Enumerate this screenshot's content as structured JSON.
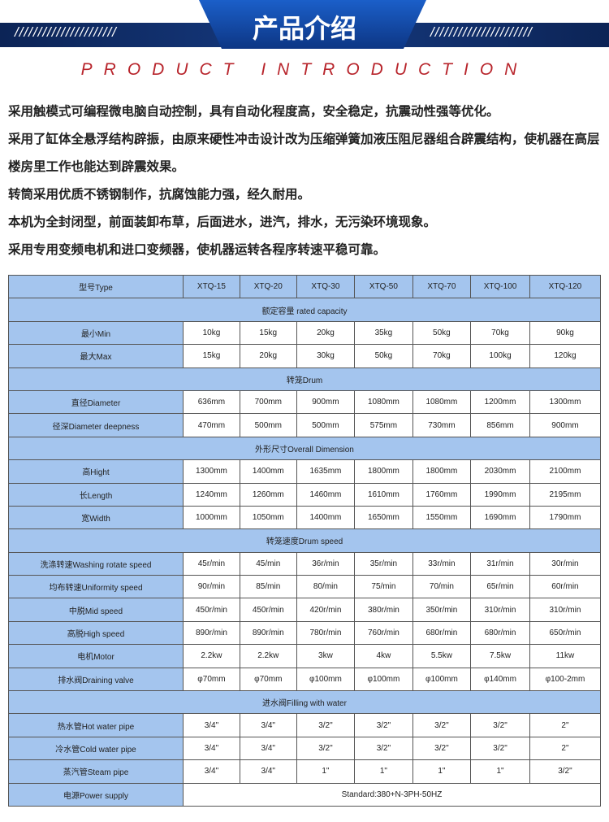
{
  "banner": {
    "title": "产品介绍",
    "subtitle": "PRODUCT INTRODUCTION",
    "slashes": "//////////////////////"
  },
  "intro": [
    "采用触模式可编程微电脑自动控制，具有自动化程度高，安全稳定，抗震动性强等优化。",
    "采用了缸体全悬浮结构辟振，由原来硬性冲击设计改为压缩弹簧加液压阻尼器组合辟震结构，使机器在高层楼房里工作也能达到辟震效果。",
    "转筒采用优质不锈钢制作，抗腐蚀能力强，经久耐用。",
    "本机为全封闭型，前面装卸布草，后面进水，进汽，排水，无污染环境现象。",
    "采用专用变频电机和进口变频器，使机器运转各程序转速平稳可靠。"
  ],
  "table": {
    "header": [
      "型号Type",
      "XTQ-15",
      "XTQ-20",
      "XTQ-30",
      "XTQ-50",
      "XTQ-70",
      "XTQ-100",
      "XTQ-120"
    ],
    "rows": [
      {
        "section": "额定容量 rated capacity"
      },
      {
        "cells": [
          "最小Min",
          "10kg",
          "15kg",
          "20kg",
          "35kg",
          "50kg",
          "70kg",
          "90kg"
        ]
      },
      {
        "cells": [
          "最大Max",
          "15kg",
          "20kg",
          "30kg",
          "50kg",
          "70kg",
          "100kg",
          "120kg"
        ]
      },
      {
        "section": "转笼Drum"
      },
      {
        "cells": [
          "直径Diameter",
          "636mm",
          "700mm",
          "900mm",
          "1080mm",
          "1080mm",
          "1200mm",
          "1300mm"
        ]
      },
      {
        "cells": [
          "径深Diameter deepness",
          "470mm",
          "500mm",
          "500mm",
          "575mm",
          "730mm",
          "856mm",
          "900mm"
        ]
      },
      {
        "section": "外形尺寸Overall Dimension"
      },
      {
        "cells": [
          "高Hight",
          "1300mm",
          "1400mm",
          "1635mm",
          "1800mm",
          "1800mm",
          "2030mm",
          "2100mm"
        ]
      },
      {
        "cells": [
          "长Length",
          "1240mm",
          "1260mm",
          "1460mm",
          "1610mm",
          "1760mm",
          "1990mm",
          "2195mm"
        ]
      },
      {
        "cells": [
          "宽Width",
          "1000mm",
          "1050mm",
          "1400mm",
          "1650mm",
          "1550mm",
          "1690mm",
          "1790mm"
        ]
      },
      {
        "section": "转笼速度Drum speed"
      },
      {
        "cells": [
          "洗涤转速Washing rotate speed",
          "45r/min",
          "45/min",
          "36r/min",
          "35r/min",
          "33r/min",
          "31r/min",
          "30r/min"
        ]
      },
      {
        "cells": [
          "均布转速Uniformity speed",
          "90r/min",
          "85/min",
          "80/min",
          "75/min",
          "70/min",
          "65r/min",
          "60r/min"
        ]
      },
      {
        "cells": [
          "中脱Mid speed",
          "450r/min",
          "450r/min",
          "420r/min",
          "380r/min",
          "350r/min",
          "310r/min",
          "310r/min"
        ]
      },
      {
        "cells": [
          "高脱High speed",
          "890r/min",
          "890r/min",
          "780r/min",
          "760r/min",
          "680r/min",
          "680r/min",
          "650r/min"
        ]
      },
      {
        "cells": [
          "电机Motor",
          "2.2kw",
          "2.2kw",
          "3kw",
          "4kw",
          "5.5kw",
          "7.5kw",
          "11kw"
        ]
      },
      {
        "cells": [
          "排水阀Draining valve",
          "φ70mm",
          "φ70mm",
          "φ100mm",
          "φ100mm",
          "φ100mm",
          "φ140mm",
          "φ100-2mm"
        ]
      },
      {
        "section": "进水阀Filling with water"
      },
      {
        "cells": [
          "热水管Hot water pipe",
          "3/4\"",
          "3/4\"",
          "3/2\"",
          "3/2\"",
          "3/2\"",
          "3/2\"",
          "2\""
        ]
      },
      {
        "cells": [
          "冷水管Cold water pipe",
          "3/4\"",
          "3/4\"",
          "3/2\"",
          "3/2\"",
          "3/2\"",
          "3/2\"",
          "2\""
        ]
      },
      {
        "cells": [
          "蒸汽管Steam pipe",
          "3/4\"",
          "3/4\"",
          "1\"",
          "1\"",
          "1\"",
          "1\"",
          "3/2\""
        ]
      },
      {
        "span": [
          "电源Power supply",
          "Standard:380+N-3PH-50HZ"
        ]
      }
    ]
  }
}
